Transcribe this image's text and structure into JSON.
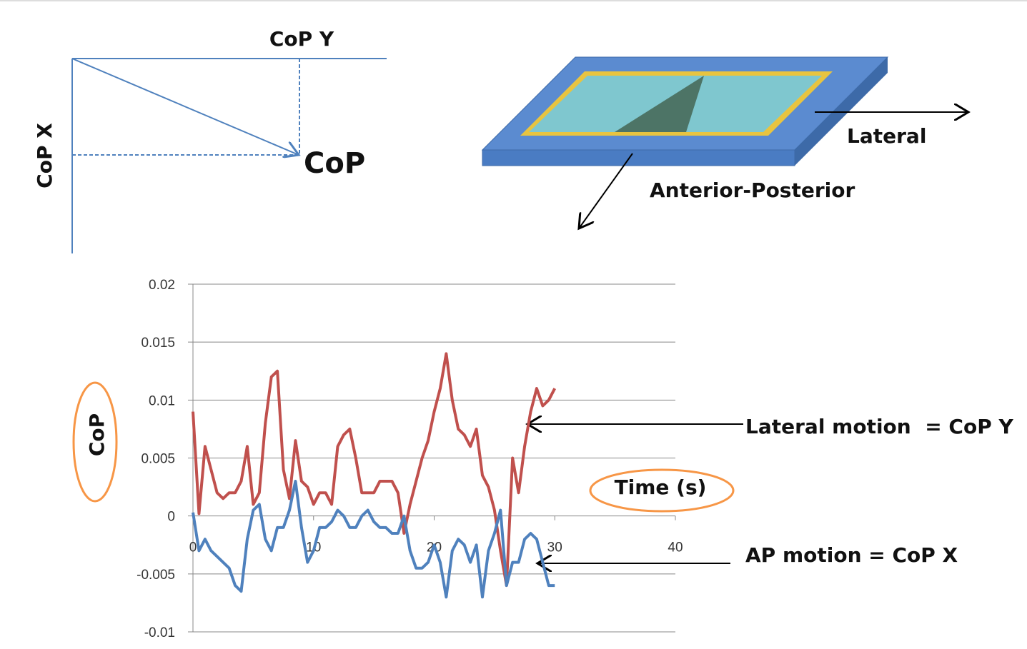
{
  "diagram": {
    "cop_y": "CoP Y",
    "cop_x": "CoP X",
    "cop": "CoP",
    "lateral": "Lateral",
    "anterior_posterior": "Anterior-Posterior"
  },
  "chart_data": {
    "type": "line",
    "y_label": "CoP",
    "x_label": "Time (s)",
    "annotations": [
      "Lateral motion  = CoP Y",
      "AP motion = CoP X"
    ],
    "xlim": [
      0,
      40
    ],
    "xticks": [
      0,
      10,
      20,
      30,
      40
    ],
    "ylim": [
      -0.01,
      0.02
    ],
    "yticks": [
      -0.01,
      -0.005,
      0,
      0.005,
      0.01,
      0.015,
      0.02
    ],
    "grid": true,
    "x": [
      0,
      0.5,
      1,
      1.5,
      2,
      2.5,
      3,
      3.5,
      4,
      4.5,
      5,
      5.5,
      6,
      6.5,
      7,
      7.5,
      8,
      8.5,
      9,
      9.5,
      10,
      10.5,
      11,
      11.5,
      12,
      12.5,
      13,
      13.5,
      14,
      14.5,
      15,
      15.5,
      16,
      16.5,
      17,
      17.5,
      18,
      18.5,
      19,
      19.5,
      20,
      20.5,
      21,
      21.5,
      22,
      22.5,
      23,
      23.5,
      24,
      24.5,
      25,
      25.5,
      26,
      26.5,
      27,
      27.5,
      28,
      28.5,
      29,
      29.5,
      30
    ],
    "series": [
      {
        "color": "#c0504d",
        "values": [
          0.009,
          0.0002,
          0.006,
          0.004,
          0.002,
          0.0015,
          0.002,
          0.002,
          0.003,
          0.006,
          0.001,
          0.002,
          0.008,
          0.012,
          0.0125,
          0.004,
          0.0015,
          0.0065,
          0.003,
          0.0025,
          0.001,
          0.002,
          0.002,
          0.001,
          0.006,
          0.007,
          0.0075,
          0.005,
          0.002,
          0.002,
          0.002,
          0.003,
          0.003,
          0.003,
          0.002,
          -0.0015,
          0.001,
          0.003,
          0.005,
          0.0065,
          0.009,
          0.011,
          0.014,
          0.01,
          0.0075,
          0.007,
          0.006,
          0.0075,
          0.0035,
          0.0025,
          0.0005,
          -0.003,
          -0.006,
          0.005,
          0.002,
          0.006,
          0.009,
          0.011,
          0.0095,
          0.01,
          0.011
        ]
      },
      {
        "color": "#4f81bd",
        "values": [
          0.0003,
          -0.003,
          -0.002,
          -0.003,
          -0.0035,
          -0.004,
          -0.0045,
          -0.006,
          -0.0065,
          -0.002,
          0.0005,
          0.001,
          -0.002,
          -0.003,
          -0.001,
          -0.001,
          0.0005,
          0.003,
          -0.001,
          -0.004,
          -0.003,
          -0.001,
          -0.001,
          -0.0005,
          0.0005,
          0,
          -0.001,
          -0.001,
          0,
          0.0005,
          -0.0005,
          -0.001,
          -0.001,
          -0.0015,
          -0.0015,
          0,
          -0.003,
          -0.0045,
          -0.0045,
          -0.004,
          -0.0025,
          -0.004,
          -0.007,
          -0.003,
          -0.002,
          -0.0025,
          -0.004,
          -0.0025,
          -0.007,
          -0.003,
          -0.0015,
          0.0005,
          -0.006,
          -0.004,
          -0.004,
          -0.002,
          -0.0015,
          -0.002,
          -0.004,
          -0.006,
          -0.006
        ]
      }
    ]
  }
}
